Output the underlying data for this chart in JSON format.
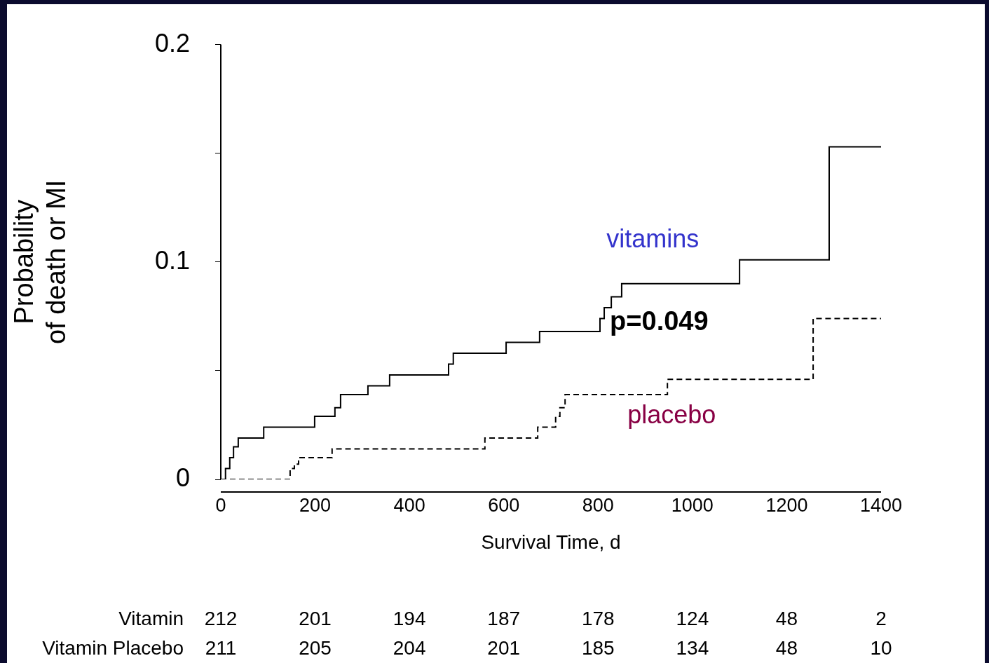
{
  "chart_data": {
    "type": "step",
    "xlabel": "Survival Time, d",
    "ylabel": "Probability\nof death or MI",
    "xlim": [
      0,
      1400
    ],
    "xticks": [
      0,
      200,
      400,
      600,
      800,
      1000,
      1200,
      1400
    ],
    "ylim": [
      0,
      0.2
    ],
    "yticks": [
      0,
      {
        "value": 0.05,
        "label": null
      },
      0.1,
      {
        "value": 0.15,
        "label": null
      },
      0.2
    ],
    "grid": false,
    "legend": false,
    "marker": "none",
    "series": [
      {
        "name": "vitamins",
        "color": "#000000",
        "line_style": "solid",
        "x": [
          0,
          10,
          19,
          27,
          37,
          91,
          199,
          242,
          254,
          312,
          358,
          483,
          493,
          605,
          676,
          804,
          813,
          828,
          850,
          1100,
          1290,
          1400
        ],
        "values": [
          0,
          0.005,
          0.01,
          0.015,
          0.019,
          0.024,
          0.029,
          0.033,
          0.039,
          0.043,
          0.048,
          0.053,
          0.058,
          0.063,
          0.068,
          0.074,
          0.079,
          0.084,
          0.09,
          0.101,
          0.153,
          0.153
        ]
      },
      {
        "name": "placebo",
        "color": "#000000",
        "line_style": "dashed",
        "x": [
          0,
          147,
          156,
          165,
          236,
          560,
          672,
          710,
          719,
          730,
          947,
          1256,
          1400
        ],
        "values": [
          0,
          0.005,
          0.007,
          0.01,
          0.014,
          0.019,
          0.024,
          0.029,
          0.033,
          0.039,
          0.046,
          0.074,
          0.074
        ]
      }
    ],
    "annotations": [
      "p=0.049",
      "Vitamin",
      "212",
      "201",
      "194",
      "187",
      "178",
      "124",
      "48",
      "2",
      "Vitamin Placebo",
      "211",
      "205",
      "204",
      "201",
      "185",
      "134",
      "48",
      "10"
    ]
  }
}
